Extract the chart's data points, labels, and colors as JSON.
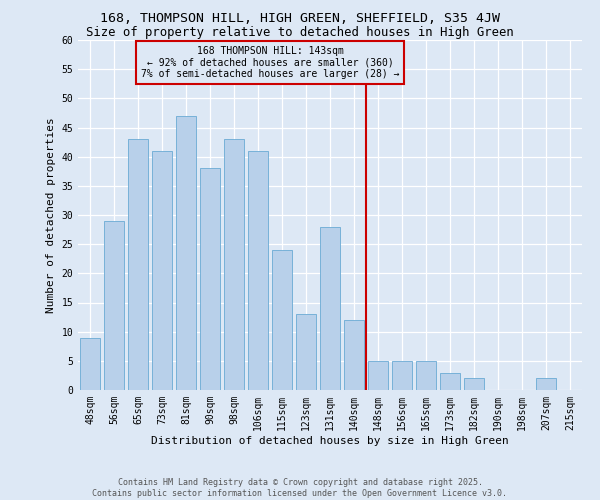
{
  "title": "168, THOMPSON HILL, HIGH GREEN, SHEFFIELD, S35 4JW",
  "subtitle": "Size of property relative to detached houses in High Green",
  "xlabel": "Distribution of detached houses by size in High Green",
  "ylabel": "Number of detached properties",
  "categories": [
    "48sqm",
    "56sqm",
    "65sqm",
    "73sqm",
    "81sqm",
    "90sqm",
    "98sqm",
    "106sqm",
    "115sqm",
    "123sqm",
    "131sqm",
    "140sqm",
    "148sqm",
    "156sqm",
    "165sqm",
    "173sqm",
    "182sqm",
    "190sqm",
    "198sqm",
    "207sqm",
    "215sqm"
  ],
  "values": [
    9,
    29,
    43,
    41,
    47,
    38,
    43,
    41,
    24,
    13,
    28,
    12,
    5,
    5,
    5,
    3,
    2,
    0,
    0,
    2,
    0
  ],
  "bar_color": "#b8d0ea",
  "bar_edge_color": "#6aaad4",
  "marker_bin_index": 12,
  "marker_label_line1": "168 THOMPSON HILL: 143sqm",
  "marker_label_line2": "← 92% of detached houses are smaller (360)",
  "marker_label_line3": "7% of semi-detached houses are larger (28) →",
  "vline_color": "#cc0000",
  "annotation_box_edge_color": "#cc0000",
  "ylim": [
    0,
    60
  ],
  "yticks": [
    0,
    5,
    10,
    15,
    20,
    25,
    30,
    35,
    40,
    45,
    50,
    55,
    60
  ],
  "bg_color": "#dde8f5",
  "grid_color": "#ffffff",
  "footer": "Contains HM Land Registry data © Crown copyright and database right 2025.\nContains public sector information licensed under the Open Government Licence v3.0.",
  "title_fontsize": 9.5,
  "subtitle_fontsize": 8.8,
  "axis_label_fontsize": 8,
  "tick_fontsize": 7,
  "footer_fontsize": 6,
  "annotation_fontsize": 7
}
